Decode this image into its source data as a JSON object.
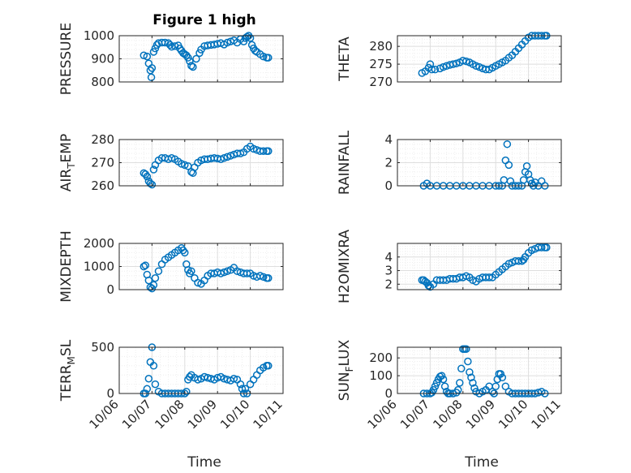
{
  "figure_title": "Figure 1 high",
  "colors": {
    "marker": "#0072BD",
    "axis": "#262626",
    "grid_major": "#dedede",
    "grid_minor": "#eeeeee"
  },
  "x_axis": {
    "label": "Time",
    "ticks": [
      "10/06",
      "10/07",
      "10/08",
      "10/09",
      "10/10",
      "10/11"
    ],
    "tick_values": [
      0,
      1,
      2,
      3,
      4,
      5
    ],
    "xlim": [
      0,
      5
    ]
  },
  "chart_data": [
    {
      "type": "scatter",
      "name": "pressure",
      "title": "Figure 1 high",
      "ylabel": "PRESSURE",
      "ylabel_sub": null,
      "ylim": [
        800,
        1000
      ],
      "yticks": [
        800,
        900,
        1000
      ],
      "grid": true,
      "minor_grid": true,
      "x": [
        0.75,
        0.85,
        0.9,
        0.95,
        0.98,
        1.0,
        1.05,
        1.1,
        1.15,
        1.2,
        1.3,
        1.4,
        1.5,
        1.55,
        1.6,
        1.7,
        1.8,
        1.85,
        1.9,
        1.95,
        2.0,
        2.05,
        2.1,
        2.15,
        2.2,
        2.25,
        2.35,
        2.45,
        2.5,
        2.6,
        2.7,
        2.8,
        2.9,
        3.0,
        3.1,
        3.2,
        3.3,
        3.4,
        3.5,
        3.6,
        3.7,
        3.8,
        3.85,
        3.9,
        3.95,
        4.0,
        4.05,
        4.1,
        4.15,
        4.2,
        4.3,
        4.4,
        4.5,
        4.55
      ],
      "y": [
        915,
        910,
        880,
        850,
        820,
        860,
        930,
        945,
        960,
        968,
        970,
        970,
        968,
        960,
        952,
        955,
        958,
        945,
        935,
        925,
        920,
        915,
        905,
        890,
        870,
        865,
        900,
        925,
        940,
        955,
        958,
        960,
        962,
        965,
        968,
        962,
        970,
        975,
        980,
        970,
        985,
        975,
        990,
        995,
        1000,
        990,
        960,
        945,
        935,
        930,
        920,
        910,
        905,
        905
      ]
    },
    {
      "type": "scatter",
      "name": "theta",
      "ylabel": "THETA",
      "ylabel_sub": null,
      "ylim": [
        270,
        283
      ],
      "yticks": [
        270,
        275,
        280
      ],
      "grid": true,
      "minor_grid": true,
      "x": [
        0.75,
        0.85,
        0.95,
        1.0,
        1.05,
        1.15,
        1.3,
        1.4,
        1.5,
        1.6,
        1.7,
        1.8,
        1.9,
        2.0,
        2.1,
        2.2,
        2.3,
        2.4,
        2.5,
        2.6,
        2.7,
        2.8,
        2.9,
        3.0,
        3.1,
        3.2,
        3.3,
        3.4,
        3.5,
        3.6,
        3.7,
        3.8,
        3.9,
        4.0,
        4.1,
        4.2,
        4.3,
        4.4,
        4.5,
        4.55
      ],
      "y": [
        272.5,
        273.0,
        274.0,
        275.0,
        273.5,
        273.5,
        273.8,
        274.2,
        274.5,
        274.8,
        275.0,
        275.2,
        275.5,
        276.0,
        275.8,
        275.5,
        275.0,
        274.5,
        274.2,
        273.8,
        273.5,
        273.5,
        274.0,
        274.5,
        275.0,
        275.5,
        276.0,
        276.8,
        277.5,
        278.5,
        279.5,
        280.5,
        281.5,
        282.5,
        283.0,
        283.0,
        283.0,
        283.0,
        283.0,
        283.0
      ]
    },
    {
      "type": "scatter",
      "name": "air_temp",
      "ylabel": "AIR",
      "ylabel_sub": "T",
      "ylabel_rest": "EMP",
      "ylim": [
        260,
        280
      ],
      "yticks": [
        260,
        270,
        280
      ],
      "grid": true,
      "minor_grid": true,
      "x": [
        0.75,
        0.8,
        0.85,
        0.9,
        0.95,
        1.0,
        1.05,
        1.1,
        1.2,
        1.3,
        1.4,
        1.5,
        1.6,
        1.7,
        1.8,
        1.9,
        2.0,
        2.1,
        2.2,
        2.25,
        2.3,
        2.4,
        2.5,
        2.6,
        2.7,
        2.8,
        2.9,
        3.0,
        3.1,
        3.2,
        3.3,
        3.4,
        3.5,
        3.6,
        3.7,
        3.8,
        3.9,
        4.0,
        4.1,
        4.2,
        4.3,
        4.4,
        4.5,
        4.55
      ],
      "y": [
        265.5,
        265.0,
        264.0,
        262.0,
        261.0,
        260.5,
        267.0,
        269.0,
        271.0,
        272.0,
        272.0,
        271.5,
        272.0,
        271.5,
        270.5,
        269.5,
        269.0,
        268.5,
        266.0,
        265.5,
        268.0,
        270.0,
        271.0,
        271.5,
        271.5,
        271.8,
        272.0,
        271.8,
        271.5,
        272.0,
        272.5,
        273.0,
        273.5,
        274.0,
        274.0,
        274.5,
        276.0,
        277.0,
        276.0,
        275.5,
        275.0,
        275.0,
        275.0,
        275.0
      ]
    },
    {
      "type": "scatter",
      "name": "rainfall",
      "ylabel": "RAINFALL",
      "ylabel_sub": null,
      "ylim": [
        0,
        4
      ],
      "yticks": [
        0,
        2,
        4
      ],
      "grid": true,
      "minor_grid": true,
      "x": [
        0.8,
        0.9,
        1.0,
        1.2,
        1.4,
        1.6,
        1.8,
        2.0,
        2.2,
        2.4,
        2.6,
        2.8,
        3.0,
        3.1,
        3.2,
        3.25,
        3.3,
        3.35,
        3.4,
        3.45,
        3.5,
        3.6,
        3.7,
        3.8,
        3.85,
        3.9,
        3.95,
        4.0,
        4.05,
        4.1,
        4.15,
        4.2,
        4.3,
        4.4,
        4.5
      ],
      "y": [
        0,
        0.2,
        0,
        0,
        0,
        0,
        0,
        0,
        0,
        0,
        0,
        0,
        0,
        0,
        0,
        0.5,
        2.2,
        3.6,
        1.8,
        0.4,
        0,
        0,
        0,
        0,
        0.5,
        1.2,
        1.7,
        1.0,
        0.5,
        0.2,
        0,
        0.3,
        0,
        0.4,
        0
      ]
    },
    {
      "type": "scatter",
      "name": "mixdepth",
      "ylabel": "MIXDEPTH",
      "ylabel_sub": null,
      "ylim": [
        0,
        2000
      ],
      "yticks": [
        0,
        1000,
        2000
      ],
      "grid": true,
      "minor_grid": true,
      "x": [
        0.75,
        0.8,
        0.85,
        0.9,
        0.95,
        1.0,
        1.05,
        1.1,
        1.2,
        1.3,
        1.4,
        1.5,
        1.6,
        1.7,
        1.8,
        1.9,
        1.95,
        2.0,
        2.05,
        2.1,
        2.15,
        2.2,
        2.3,
        2.4,
        2.5,
        2.6,
        2.7,
        2.8,
        2.9,
        3.0,
        3.1,
        3.2,
        3.3,
        3.4,
        3.5,
        3.6,
        3.7,
        3.8,
        3.9,
        4.0,
        4.1,
        4.2,
        4.3,
        4.4,
        4.5,
        4.55
      ],
      "y": [
        1000,
        1050,
        650,
        400,
        100,
        50,
        200,
        500,
        800,
        1100,
        1300,
        1400,
        1500,
        1600,
        1700,
        1800,
        1700,
        1600,
        1100,
        850,
        700,
        800,
        500,
        300,
        250,
        400,
        600,
        700,
        700,
        750,
        700,
        750,
        800,
        850,
        950,
        800,
        750,
        700,
        700,
        700,
        600,
        550,
        600,
        550,
        500,
        500
      ]
    },
    {
      "type": "scatter",
      "name": "h2omixra",
      "ylabel": "H2OMIXRA",
      "ylabel_sub": null,
      "ylim": [
        1.6,
        5.0
      ],
      "yticks": [
        2,
        3,
        4
      ],
      "grid": true,
      "minor_grid": true,
      "x": [
        0.75,
        0.8,
        0.85,
        0.9,
        0.95,
        1.0,
        1.1,
        1.2,
        1.3,
        1.4,
        1.5,
        1.6,
        1.7,
        1.8,
        1.9,
        2.0,
        2.1,
        2.2,
        2.3,
        2.4,
        2.5,
        2.6,
        2.7,
        2.8,
        2.9,
        3.0,
        3.1,
        3.2,
        3.3,
        3.4,
        3.5,
        3.6,
        3.7,
        3.8,
        3.85,
        3.9,
        4.0,
        4.1,
        4.2,
        4.3,
        4.4,
        4.5,
        4.55
      ],
      "y": [
        2.3,
        2.3,
        2.2,
        2.1,
        1.9,
        1.8,
        2.0,
        2.3,
        2.3,
        2.3,
        2.3,
        2.4,
        2.4,
        2.4,
        2.5,
        2.5,
        2.6,
        2.5,
        2.3,
        2.2,
        2.4,
        2.5,
        2.5,
        2.5,
        2.5,
        2.7,
        2.9,
        3.1,
        3.3,
        3.5,
        3.6,
        3.7,
        3.7,
        3.7,
        3.8,
        4.0,
        4.3,
        4.5,
        4.6,
        4.7,
        4.7,
        4.7,
        4.7
      ]
    },
    {
      "type": "scatter",
      "name": "terr_msl",
      "ylabel": "TERR",
      "ylabel_sub": "M",
      "ylabel_rest": "SL",
      "ylim": [
        0,
        500
      ],
      "yticks": [
        0,
        500
      ],
      "grid": true,
      "minor_grid": true,
      "x": [
        0.75,
        0.8,
        0.85,
        0.9,
        0.95,
        1.0,
        1.05,
        1.1,
        1.2,
        1.3,
        1.4,
        1.5,
        1.6,
        1.7,
        1.8,
        1.9,
        2.0,
        2.05,
        2.1,
        2.15,
        2.2,
        2.3,
        2.4,
        2.5,
        2.6,
        2.7,
        2.8,
        2.9,
        3.0,
        3.1,
        3.2,
        3.3,
        3.4,
        3.5,
        3.6,
        3.7,
        3.75,
        3.8,
        3.85,
        3.9,
        4.0,
        4.1,
        4.2,
        4.3,
        4.4,
        4.5,
        4.55
      ],
      "y": [
        0,
        0,
        50,
        160,
        340,
        500,
        300,
        100,
        20,
        0,
        0,
        0,
        0,
        0,
        0,
        0,
        0,
        20,
        150,
        180,
        200,
        170,
        150,
        160,
        180,
        170,
        160,
        150,
        170,
        180,
        160,
        150,
        140,
        160,
        150,
        100,
        50,
        0,
        50,
        0,
        100,
        150,
        200,
        250,
        280,
        300,
        300
      ]
    },
    {
      "type": "scatter",
      "name": "sun_flux",
      "ylabel": "SUN",
      "ylabel_sub": "F",
      "ylabel_rest": "LUX",
      "ylim": [
        0,
        260
      ],
      "yticks": [
        0,
        100,
        200
      ],
      "grid": true,
      "minor_grid": true,
      "x": [
        0.8,
        0.9,
        1.0,
        1.05,
        1.1,
        1.15,
        1.2,
        1.25,
        1.3,
        1.35,
        1.4,
        1.45,
        1.5,
        1.55,
        1.6,
        1.7,
        1.8,
        1.85,
        1.9,
        1.95,
        2.0,
        2.05,
        2.1,
        2.15,
        2.2,
        2.25,
        2.3,
        2.35,
        2.4,
        2.5,
        2.6,
        2.7,
        2.8,
        2.9,
        2.95,
        3.0,
        3.05,
        3.1,
        3.15,
        3.2,
        3.3,
        3.4,
        3.5,
        3.6,
        3.7,
        3.8,
        3.9,
        4.0,
        4.1,
        4.2,
        4.3,
        4.4,
        4.5
      ],
      "y": [
        0,
        0,
        0,
        5,
        20,
        40,
        60,
        80,
        95,
        100,
        80,
        40,
        10,
        0,
        0,
        0,
        5,
        20,
        60,
        140,
        250,
        250,
        250,
        180,
        120,
        90,
        60,
        30,
        10,
        0,
        10,
        20,
        40,
        10,
        0,
        40,
        80,
        110,
        110,
        90,
        40,
        10,
        0,
        0,
        0,
        0,
        0,
        0,
        0,
        0,
        5,
        10,
        0
      ]
    }
  ]
}
